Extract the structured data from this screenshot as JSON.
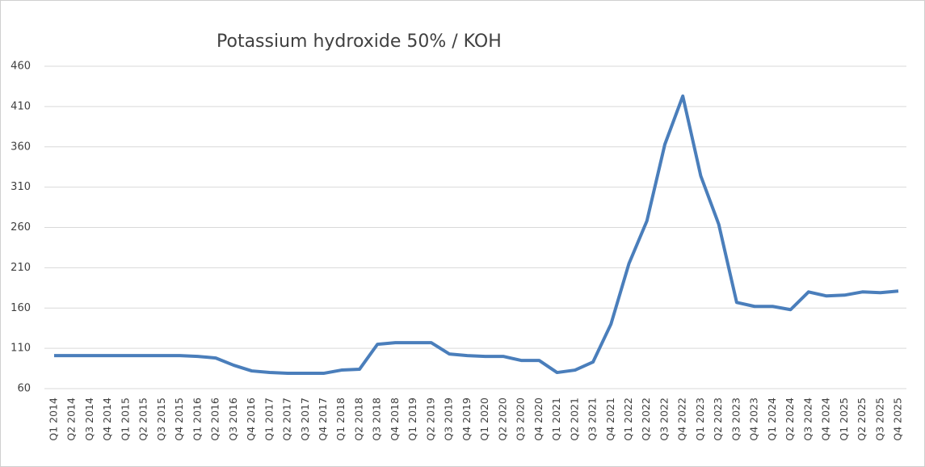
{
  "chart_data": {
    "type": "line",
    "title": "Potassium hydroxide 50% / KOH",
    "categories": [
      "Q1 2014",
      "Q2 2014",
      "Q3 2014",
      "Q4 2014",
      "Q1 2015",
      "Q2 2015",
      "Q3 2015",
      "Q4 2015",
      "Q1 2016",
      "Q2 2016",
      "Q3 2016",
      "Q4 2016",
      "Q1 2017",
      "Q2 2017",
      "Q3 2017",
      "Q4 2017",
      "Q1 2018",
      "Q2 2018",
      "Q3 2018",
      "Q4 2018",
      "Q1 2019",
      "Q2 2019",
      "Q3 2019",
      "Q4 2019",
      "Q1 2020",
      "Q2 2020",
      "Q3 2020",
      "Q4 2020",
      "Q1 2021",
      "Q2 2021",
      "Q3 2021",
      "Q4 2021",
      "Q1 2022",
      "Q2 2022",
      "Q3 2022",
      "Q4 2022",
      "Q1 2023",
      "Q2 2023",
      "Q3 2023",
      "Q4 2023",
      "Q1 2024",
      "Q2 2024",
      "Q3 2024",
      "Q4 2024",
      "Q1 2025",
      "Q2 2025",
      "Q3 2025",
      "Q4 2025"
    ],
    "series": [
      {
        "color": "#4a7ebb",
        "values": [
          101,
          101,
          101,
          101,
          101,
          101,
          101,
          101,
          100,
          98,
          89,
          82,
          80,
          79,
          79,
          79,
          83,
          84,
          115,
          117,
          117,
          117,
          103,
          101,
          100,
          100,
          95,
          95,
          80,
          83,
          93,
          140,
          215,
          268,
          363,
          423,
          324,
          264,
          167,
          162,
          162,
          158,
          180,
          175,
          176,
          180,
          179,
          181
        ]
      }
    ],
    "ylim": [
      60,
      460
    ],
    "yticks": [
      60,
      110,
      160,
      210,
      260,
      310,
      360,
      410,
      460
    ],
    "grid": true
  }
}
